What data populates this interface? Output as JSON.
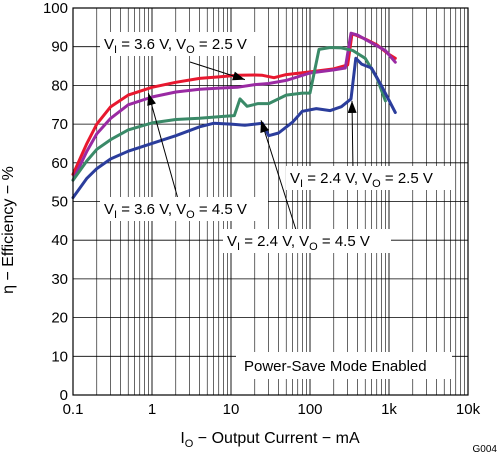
{
  "chart_data": {
    "type": "line",
    "xlabel": {
      "main": "I",
      "sub": "O",
      "rest": " − Output Current − mA"
    },
    "ylabel": "η − Efficiency − %",
    "x_scale": "log",
    "xlim": [
      0.1,
      10000
    ],
    "ylim": [
      0,
      100
    ],
    "x_ticks": [
      0.1,
      1,
      10,
      100,
      1000,
      10000
    ],
    "x_tick_labels": [
      "0.1",
      "1",
      "10",
      "100",
      "1k",
      "10k"
    ],
    "y_ticks": [
      0,
      10,
      20,
      30,
      40,
      50,
      60,
      70,
      80,
      90,
      100
    ],
    "grid": true,
    "figure_code": "G004",
    "annotations": [
      {
        "id": "ann-vi36-vo25",
        "parts": [
          "V",
          "I",
          " = 3.6 V, V",
          "O",
          " = 2.5 V"
        ],
        "series": 0,
        "arrow_to": [
          15,
          81.5
        ]
      },
      {
        "id": "ann-vi24-vo25",
        "parts": [
          "V",
          "I",
          " = 2.4 V, V",
          "O",
          " = 2.5 V"
        ],
        "series": 2,
        "arrow_to": [
          340,
          76
        ]
      },
      {
        "id": "ann-vi36-vo45",
        "parts": [
          "V",
          "I",
          " = 3.6 V, V",
          "O",
          " = 4.5 V"
        ],
        "series": 1,
        "arrow_to": [
          0.9,
          78
        ]
      },
      {
        "id": "ann-vi24-vo45",
        "parts": [
          "V",
          "I",
          " = 2.4 V, V",
          "O",
          " = 4.5 V"
        ],
        "series": 3,
        "arrow_to": [
          24,
          71
        ]
      }
    ],
    "note": "Power-Save Mode Enabled",
    "series": [
      {
        "color": "#e8182f",
        "points": [
          [
            0.1,
            57
          ],
          [
            0.15,
            65
          ],
          [
            0.2,
            70
          ],
          [
            0.3,
            74.5
          ],
          [
            0.5,
            77.5
          ],
          [
            1,
            79.5
          ],
          [
            2,
            80.8
          ],
          [
            4,
            81.8
          ],
          [
            7,
            82.2
          ],
          [
            12,
            82.6
          ],
          [
            20,
            82.7
          ],
          [
            25,
            82.6
          ],
          [
            35,
            82
          ],
          [
            50,
            82.8
          ],
          [
            100,
            83.5
          ],
          [
            200,
            84.3
          ],
          [
            300,
            85.3
          ],
          [
            340,
            93.3
          ],
          [
            380,
            93
          ],
          [
            500,
            92
          ],
          [
            700,
            90.5
          ],
          [
            1000,
            88
          ],
          [
            1200,
            87
          ]
        ]
      },
      {
        "color": "#9a2aa3",
        "points": [
          [
            0.1,
            55.5
          ],
          [
            0.15,
            63
          ],
          [
            0.2,
            67.5
          ],
          [
            0.3,
            71.5
          ],
          [
            0.5,
            75
          ],
          [
            1,
            77
          ],
          [
            2,
            78.3
          ],
          [
            4,
            79
          ],
          [
            7,
            79.3
          ],
          [
            12,
            79.5
          ],
          [
            20,
            80.2
          ],
          [
            30,
            80.5
          ],
          [
            50,
            81.3
          ],
          [
            100,
            83.2
          ],
          [
            200,
            84
          ],
          [
            280,
            84.5
          ],
          [
            330,
            93.5
          ],
          [
            400,
            93
          ],
          [
            600,
            91
          ],
          [
            900,
            89
          ],
          [
            1200,
            86
          ]
        ]
      },
      {
        "color": "#3a8a68",
        "points": [
          [
            0.1,
            55.5
          ],
          [
            0.15,
            60.5
          ],
          [
            0.2,
            63.5
          ],
          [
            0.3,
            66
          ],
          [
            0.5,
            68.5
          ],
          [
            1,
            70.3
          ],
          [
            2,
            71.2
          ],
          [
            4,
            71.5
          ],
          [
            8,
            72
          ],
          [
            11,
            72.2
          ],
          [
            13,
            76.5
          ],
          [
            16,
            74.6
          ],
          [
            22,
            75.3
          ],
          [
            30,
            75.3
          ],
          [
            50,
            77.5
          ],
          [
            80,
            78
          ],
          [
            100,
            78
          ],
          [
            130,
            89.3
          ],
          [
            180,
            89.8
          ],
          [
            250,
            89.7
          ],
          [
            350,
            89
          ],
          [
            500,
            87
          ],
          [
            700,
            82
          ],
          [
            900,
            76
          ]
        ]
      },
      {
        "color": "#2b3d9c",
        "points": [
          [
            0.1,
            51
          ],
          [
            0.15,
            56
          ],
          [
            0.2,
            58.5
          ],
          [
            0.3,
            61
          ],
          [
            0.5,
            63
          ],
          [
            1,
            65
          ],
          [
            2,
            67
          ],
          [
            4,
            69.3
          ],
          [
            6,
            70.2
          ],
          [
            10,
            70
          ],
          [
            15,
            69.7
          ],
          [
            25,
            70.2
          ],
          [
            30,
            67
          ],
          [
            40,
            67.7
          ],
          [
            60,
            70.5
          ],
          [
            80,
            73.3
          ],
          [
            120,
            74
          ],
          [
            180,
            73.5
          ],
          [
            250,
            74.5
          ],
          [
            330,
            76.5
          ],
          [
            380,
            87
          ],
          [
            450,
            85.5
          ],
          [
            600,
            84.5
          ],
          [
            800,
            80
          ],
          [
            1200,
            73
          ]
        ]
      }
    ]
  }
}
